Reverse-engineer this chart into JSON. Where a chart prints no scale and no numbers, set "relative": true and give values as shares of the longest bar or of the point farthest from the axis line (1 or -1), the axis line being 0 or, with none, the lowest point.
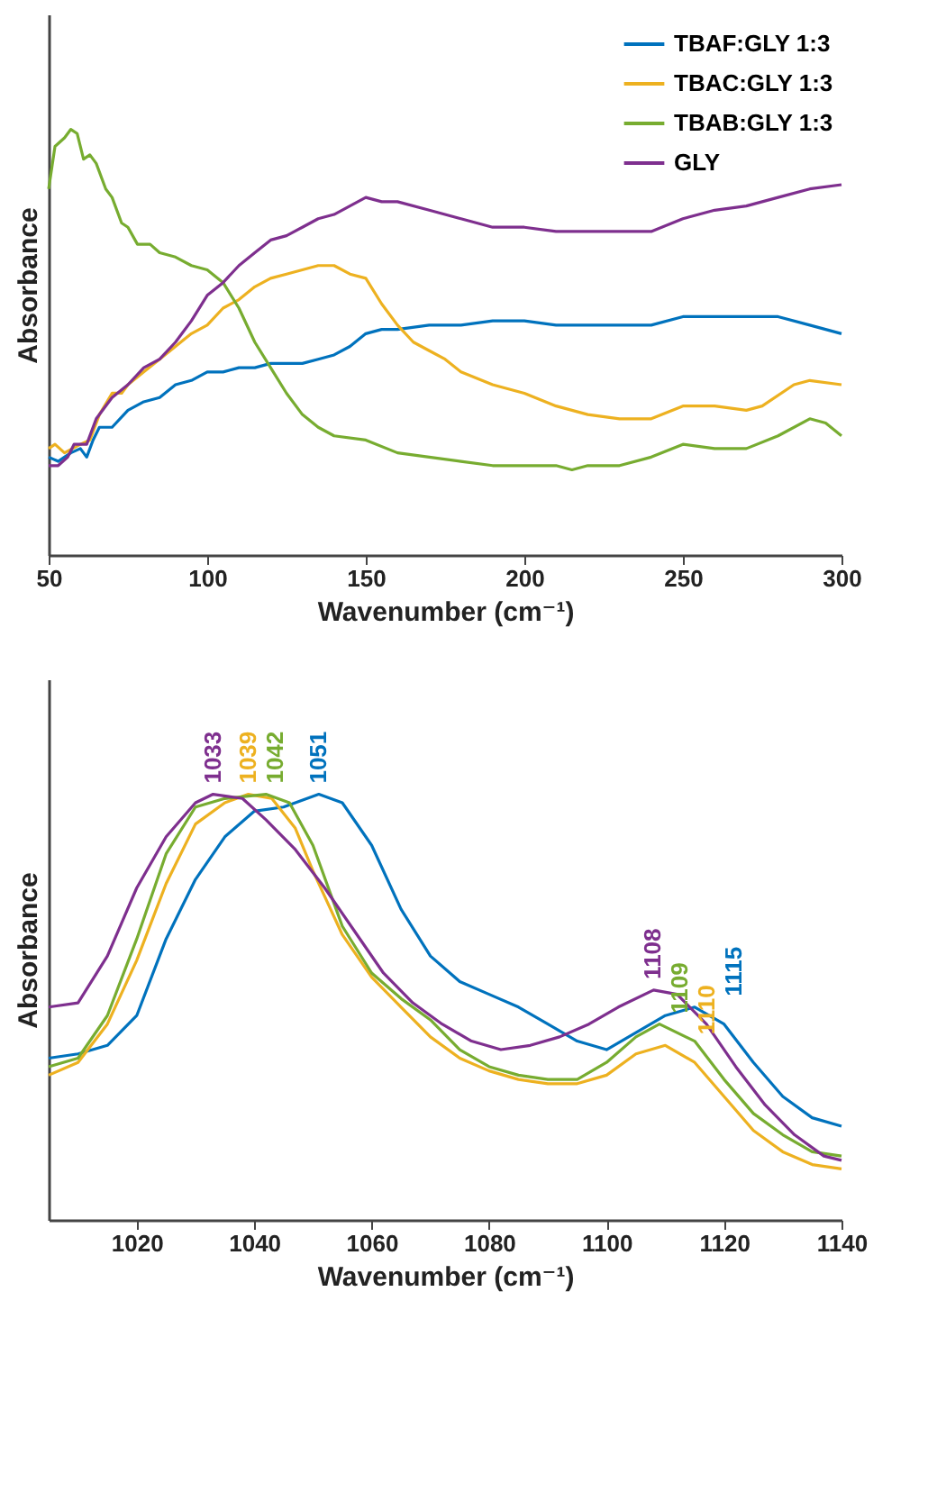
{
  "chart_data": [
    {
      "type": "line",
      "xlabel": "Wavenumber (cm⁻¹)",
      "ylabel": "Absorbance",
      "relative": true,
      "xlim": [
        50,
        300
      ],
      "xticks": [
        50,
        100,
        150,
        200,
        250,
        300
      ],
      "legend": "top right",
      "series": [
        {
          "name": "TBAF:GLY 1:3",
          "color": "#0072bd",
          "x": [
            50,
            53,
            57,
            60,
            62,
            64,
            66,
            70,
            75,
            80,
            85,
            90,
            95,
            100,
            105,
            110,
            115,
            120,
            125,
            130,
            135,
            140,
            145,
            150,
            155,
            160,
            170,
            180,
            190,
            200,
            210,
            220,
            230,
            240,
            250,
            260,
            270,
            280,
            290,
            300
          ],
          "values": [
            0.23,
            0.22,
            0.24,
            0.25,
            0.23,
            0.27,
            0.3,
            0.3,
            0.34,
            0.36,
            0.37,
            0.4,
            0.41,
            0.43,
            0.43,
            0.44,
            0.44,
            0.45,
            0.45,
            0.45,
            0.46,
            0.47,
            0.49,
            0.52,
            0.53,
            0.53,
            0.54,
            0.54,
            0.55,
            0.55,
            0.54,
            0.54,
            0.54,
            0.54,
            0.56,
            0.56,
            0.56,
            0.56,
            0.54,
            0.52
          ]
        },
        {
          "name": "TBAC:GLY 1:3",
          "color": "#edb120",
          "x": [
            50,
            52,
            55,
            60,
            63,
            66,
            70,
            73,
            75,
            80,
            85,
            90,
            95,
            100,
            105,
            110,
            115,
            120,
            125,
            130,
            135,
            140,
            145,
            150,
            155,
            160,
            165,
            170,
            175,
            180,
            190,
            200,
            210,
            220,
            230,
            240,
            250,
            260,
            270,
            275,
            285,
            290,
            300
          ],
          "values": [
            0.25,
            0.26,
            0.24,
            0.26,
            0.27,
            0.33,
            0.38,
            0.38,
            0.4,
            0.43,
            0.46,
            0.49,
            0.52,
            0.54,
            0.58,
            0.6,
            0.63,
            0.65,
            0.66,
            0.67,
            0.68,
            0.68,
            0.66,
            0.65,
            0.59,
            0.54,
            0.5,
            0.48,
            0.46,
            0.43,
            0.4,
            0.38,
            0.35,
            0.33,
            0.32,
            0.32,
            0.35,
            0.35,
            0.34,
            0.35,
            0.4,
            0.41,
            0.4
          ]
        },
        {
          "name": "TBAB:GLY 1:3",
          "color": "#77ac30",
          "x": [
            50,
            52,
            55,
            57,
            59,
            61,
            63,
            65,
            68,
            70,
            73,
            75,
            78,
            82,
            85,
            90,
            95,
            100,
            105,
            110,
            115,
            120,
            125,
            130,
            135,
            140,
            150,
            160,
            170,
            180,
            190,
            200,
            210,
            215,
            220,
            230,
            240,
            250,
            260,
            270,
            280,
            290,
            295,
            300
          ],
          "values": [
            0.86,
            0.96,
            0.98,
            1,
            0.99,
            0.93,
            0.94,
            0.92,
            0.86,
            0.84,
            0.78,
            0.77,
            0.73,
            0.73,
            0.71,
            0.7,
            0.68,
            0.67,
            0.64,
            0.58,
            0.5,
            0.44,
            0.38,
            0.33,
            0.3,
            0.28,
            0.27,
            0.24,
            0.23,
            0.22,
            0.21,
            0.21,
            0.21,
            0.2,
            0.21,
            0.21,
            0.23,
            0.26,
            0.25,
            0.25,
            0.28,
            0.32,
            0.31,
            0.28
          ]
        },
        {
          "name": "GLY",
          "color": "#7e2f8e",
          "x": [
            50,
            53,
            56,
            58,
            62,
            65,
            70,
            75,
            80,
            85,
            90,
            95,
            100,
            105,
            110,
            115,
            120,
            125,
            130,
            135,
            140,
            145,
            150,
            155,
            160,
            170,
            180,
            190,
            200,
            210,
            220,
            230,
            240,
            250,
            260,
            270,
            280,
            290,
            300
          ],
          "values": [
            0.21,
            0.21,
            0.23,
            0.26,
            0.26,
            0.32,
            0.37,
            0.4,
            0.44,
            0.46,
            0.5,
            0.55,
            0.61,
            0.64,
            0.68,
            0.71,
            0.74,
            0.75,
            0.77,
            0.79,
            0.8,
            0.82,
            0.84,
            0.83,
            0.83,
            0.81,
            0.79,
            0.77,
            0.77,
            0.76,
            0.76,
            0.76,
            0.76,
            0.79,
            0.81,
            0.82,
            0.84,
            0.86,
            0.87
          ]
        }
      ]
    },
    {
      "type": "line",
      "xlabel": "Wavenumber (cm⁻¹)",
      "ylabel": "Absorbance",
      "relative": true,
      "xlim": [
        1005,
        1140
      ],
      "xticks": [
        1020,
        1040,
        1060,
        1080,
        1100,
        1120,
        1140
      ],
      "legend": "top right",
      "series": [
        {
          "name": "TBAF:GLY 1:3",
          "color": "#0072bd",
          "x": [
            1005,
            1010,
            1015,
            1020,
            1025,
            1030,
            1035,
            1040,
            1045,
            1051,
            1055,
            1060,
            1065,
            1070,
            1075,
            1080,
            1085,
            1090,
            1095,
            1100,
            1105,
            1110,
            1115,
            1120,
            1125,
            1130,
            1135,
            1140
          ],
          "values": [
            0.38,
            0.39,
            0.41,
            0.48,
            0.66,
            0.8,
            0.9,
            0.96,
            0.97,
            1,
            0.98,
            0.88,
            0.73,
            0.62,
            0.56,
            0.53,
            0.5,
            0.46,
            0.42,
            0.4,
            0.44,
            0.48,
            0.5,
            0.46,
            0.37,
            0.29,
            0.24,
            0.22
          ]
        },
        {
          "name": "TBAC:GLY 1:3",
          "color": "#edb120",
          "x": [
            1005,
            1010,
            1015,
            1020,
            1025,
            1030,
            1035,
            1039,
            1043,
            1047,
            1050,
            1055,
            1060,
            1065,
            1070,
            1075,
            1080,
            1085,
            1090,
            1095,
            1100,
            1105,
            1110,
            1115,
            1120,
            1125,
            1130,
            1135,
            1140
          ],
          "values": [
            0.34,
            0.37,
            0.46,
            0.61,
            0.79,
            0.93,
            0.98,
            1,
            0.99,
            0.92,
            0.82,
            0.67,
            0.57,
            0.5,
            0.43,
            0.38,
            0.35,
            0.33,
            0.32,
            0.32,
            0.34,
            0.39,
            0.41,
            0.37,
            0.29,
            0.21,
            0.16,
            0.13,
            0.12
          ]
        },
        {
          "name": "TBAB:GLY 1:3",
          "color": "#77ac30",
          "x": [
            1005,
            1010,
            1015,
            1020,
            1025,
            1030,
            1035,
            1042,
            1046,
            1050,
            1055,
            1060,
            1065,
            1070,
            1075,
            1080,
            1085,
            1090,
            1095,
            1100,
            1105,
            1109,
            1115,
            1120,
            1125,
            1130,
            1135,
            1140
          ],
          "values": [
            0.36,
            0.38,
            0.48,
            0.66,
            0.86,
            0.97,
            0.99,
            1,
            0.98,
            0.88,
            0.69,
            0.58,
            0.52,
            0.47,
            0.4,
            0.36,
            0.34,
            0.33,
            0.33,
            0.37,
            0.43,
            0.46,
            0.42,
            0.33,
            0.25,
            0.2,
            0.16,
            0.15
          ]
        },
        {
          "name": "GLY",
          "color": "#7e2f8e",
          "x": [
            1005,
            1010,
            1015,
            1020,
            1025,
            1030,
            1033,
            1038,
            1042,
            1047,
            1052,
            1057,
            1062,
            1067,
            1072,
            1077,
            1082,
            1087,
            1092,
            1097,
            1102,
            1108,
            1112,
            1117,
            1122,
            1127,
            1132,
            1137,
            1140
          ],
          "values": [
            0.5,
            0.51,
            0.62,
            0.78,
            0.9,
            0.98,
            1,
            0.99,
            0.94,
            0.87,
            0.78,
            0.68,
            0.58,
            0.51,
            0.46,
            0.42,
            0.4,
            0.41,
            0.43,
            0.46,
            0.5,
            0.54,
            0.53,
            0.46,
            0.36,
            0.27,
            0.2,
            0.15,
            0.14
          ]
        }
      ],
      "annotations": [
        {
          "text": "1033",
          "x": 1033,
          "y": 1
        },
        {
          "text": "1039",
          "x": 1039,
          "y": 1
        },
        {
          "text": "1042",
          "x": 1042,
          "y": 1
        },
        {
          "text": "1051",
          "x": 1051,
          "y": 1
        },
        {
          "text": "1108",
          "x": 1108,
          "y": 0.54
        },
        {
          "text": "1109",
          "x": 1109,
          "y": 0.46
        },
        {
          "text": "1110",
          "x": 1110,
          "y": 0.41
        },
        {
          "text": "1115",
          "x": 1115,
          "y": 0.5
        }
      ]
    }
  ]
}
